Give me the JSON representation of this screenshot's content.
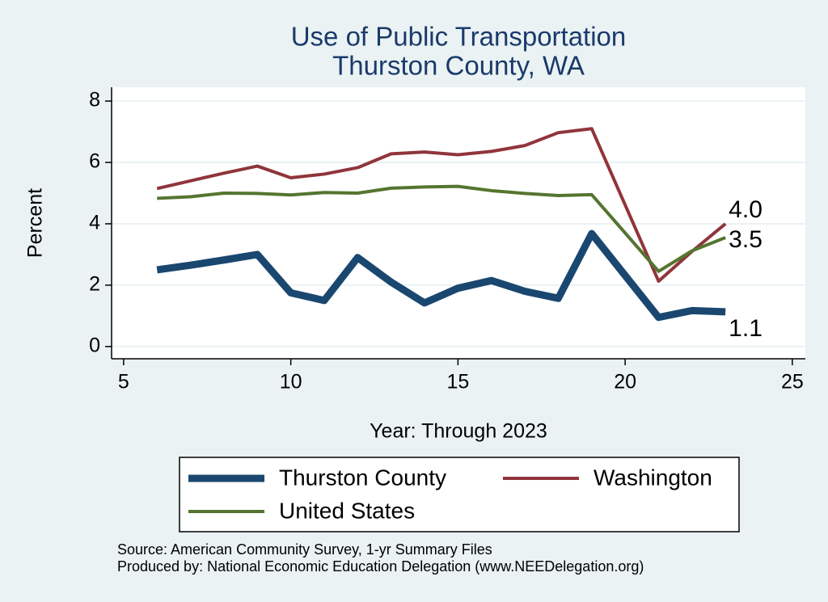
{
  "chart_data": {
    "type": "line",
    "title": [
      "Use of Public Transportation",
      "Thurston County, WA"
    ],
    "x_label": "Year: Through 2023",
    "y_label": "Percent",
    "x": [
      6,
      7,
      8,
      9,
      10,
      11,
      12,
      13,
      14,
      15,
      16,
      17,
      18,
      19,
      21,
      22,
      23
    ],
    "series": [
      {
        "name": "Thurston County",
        "color": "#1a476f",
        "values": [
          2.5,
          2.65,
          2.82,
          3.0,
          1.75,
          1.5,
          2.9,
          2.1,
          1.42,
          1.9,
          2.15,
          1.8,
          1.57,
          3.68,
          0.95,
          1.17,
          1.13
        ],
        "value_labels": [
          null,
          null,
          null,
          null,
          null,
          null,
          null,
          null,
          null,
          null,
          null,
          null,
          null,
          null,
          null,
          null,
          "1.1"
        ]
      },
      {
        "name": "Washington",
        "color": "#90353b",
        "values": [
          5.15,
          5.4,
          5.65,
          5.88,
          5.5,
          5.62,
          5.83,
          6.28,
          6.34,
          6.25,
          6.36,
          6.55,
          6.97,
          7.1,
          2.13,
          3.1,
          4.0
        ],
        "value_labels": [
          null,
          null,
          null,
          null,
          null,
          null,
          null,
          null,
          null,
          null,
          null,
          null,
          null,
          null,
          null,
          null,
          "4.0"
        ]
      },
      {
        "name": "United States",
        "color": "#55752f",
        "values": [
          4.83,
          4.88,
          5.0,
          4.99,
          4.94,
          5.02,
          5.0,
          5.16,
          5.2,
          5.22,
          5.08,
          4.99,
          4.92,
          4.95,
          2.45,
          3.12,
          3.55
        ],
        "value_labels": [
          null,
          null,
          null,
          null,
          null,
          null,
          null,
          null,
          null,
          null,
          null,
          null,
          null,
          null,
          null,
          null,
          "3.5"
        ]
      }
    ],
    "xlim": [
      4.64,
      25.39
    ],
    "xticks": [
      5,
      10,
      15,
      20,
      25
    ],
    "ylim": [
      -0.4,
      8.45
    ],
    "yticks": [
      0,
      2,
      4,
      6,
      8
    ],
    "grid": true,
    "notes": [
      "Source: American Community Survey, 1-yr Summary Files",
      "Produced by: National Economic Education Delegation (www.NEEDelegation.org)"
    ]
  }
}
